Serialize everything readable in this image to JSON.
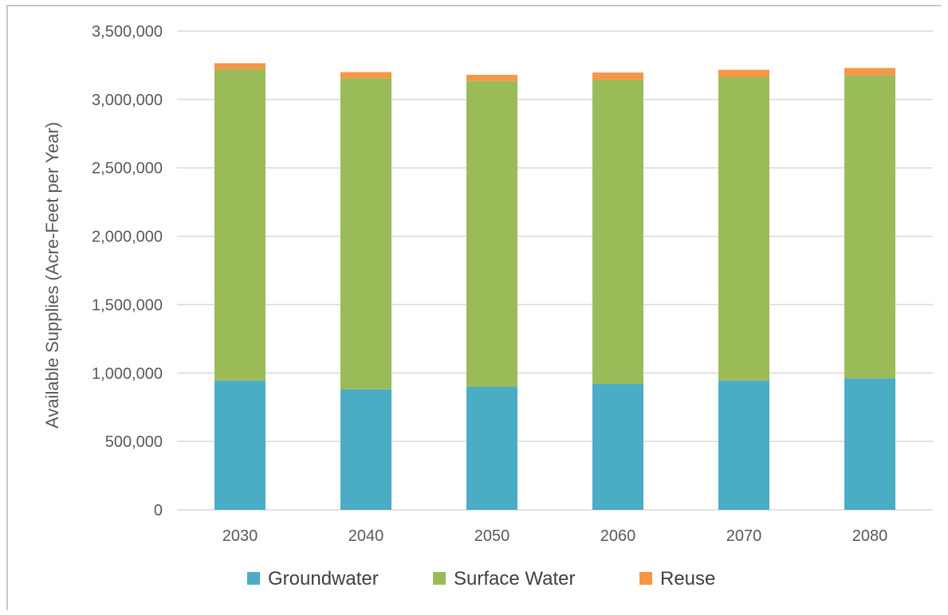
{
  "chart_data": {
    "type": "bar",
    "stacked": true,
    "title": "",
    "xlabel": "",
    "ylabel": "Available Supplies (Acre-Feet per Year)",
    "categories": [
      "2030",
      "2040",
      "2050",
      "2060",
      "2070",
      "2080"
    ],
    "series": [
      {
        "name": "Groundwater",
        "color": "#4bacc6",
        "values": [
          945000,
          880000,
          900000,
          920000,
          945000,
          960000
        ]
      },
      {
        "name": "Surface Water",
        "color": "#9bbb59",
        "values": [
          2275000,
          2275000,
          2235000,
          2225000,
          2220000,
          2218000
        ]
      },
      {
        "name": "Reuse",
        "color": "#f79646",
        "values": [
          45000,
          45000,
          45000,
          52000,
          52000,
          52000
        ]
      }
    ],
    "ylim": [
      0,
      3500000
    ],
    "yticks": [
      0,
      500000,
      1000000,
      1500000,
      2000000,
      2500000,
      3000000,
      3500000
    ],
    "ytick_labels": [
      "0",
      "500,000",
      "1,000,000",
      "1,500,000",
      "2,000,000",
      "2,500,000",
      "3,000,000",
      "3,500,000"
    ],
    "grid": true,
    "legend_position": "bottom",
    "gridline_color": "#d9d9d9"
  }
}
